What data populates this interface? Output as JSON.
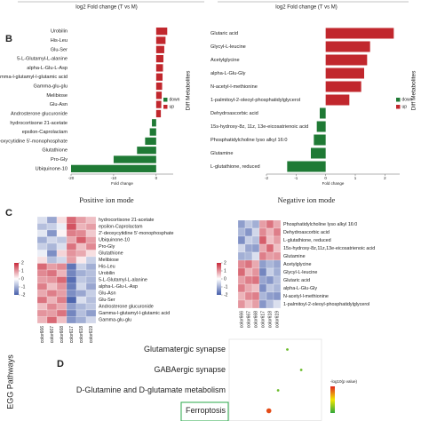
{
  "top_labels": [
    "log2 Fold change (T vs M)",
    "log2 Fold change (T vs M)"
  ],
  "panels": [
    "B",
    "C",
    "D"
  ],
  "chart_data": [
    {
      "type": "hbar",
      "caption": "Positive ion mode",
      "xlabel": "Fold change",
      "legend_title": "Diff Metabolites",
      "legend": [
        {
          "name": "down",
          "color": "#1f7a35"
        },
        {
          "name": "up",
          "color": "#c1272d"
        }
      ],
      "categories": [
        "Urobilin",
        "His-Leu",
        "Glu-Ser",
        "5-L-Glutamyl-L-alanine",
        "alpha-L-Glu-L-Asp",
        "Gamma-l-glutamyl-l-glutamic acid",
        "Gamma-glu-glu",
        "Melibiose",
        "Glu-Asn",
        "Androsterone glucuronide",
        "hydrocortisone 21-acetate",
        "epsilon-Caprolactam",
        "2'-deoxycytidine 5'-monophosphate",
        "Glutathione",
        "Pro-Gly",
        "Ubiquinone-10"
      ],
      "values": [
        2.6,
        2.2,
        1.9,
        1.7,
        1.6,
        1.5,
        1.4,
        1.3,
        1.2,
        1.1,
        -1.0,
        -1.5,
        -2.6,
        -4.5,
        -10,
        -20
      ],
      "xlim": [
        -20,
        4
      ],
      "xticks": [
        -20,
        -10,
        0
      ]
    },
    {
      "type": "hbar",
      "caption": "Negative ion mode",
      "xlabel": "Fold change",
      "legend_title": "Diff Metabolites",
      "legend": [
        {
          "name": "down",
          "color": "#1f7a35"
        },
        {
          "name": "up",
          "color": "#c1272d"
        }
      ],
      "categories": [
        "Glutaric acid",
        "Glycyl-L-leucine",
        "Acetylglycine",
        "alpha-L-Glu-Gly",
        "N-acetyl-l-methionine",
        "1-palmitoyl-2-oleoyl-phosphatidylglycerol",
        "Dehydroascorbic acid",
        "15s-hydroxy-8z, 11z, 13e-eicosatrienoic acid",
        "Phosphatidylcholine lyso alkyl 16:0",
        "Glutamine",
        "L-glutathione, reduced"
      ],
      "values": [
        2.3,
        1.5,
        1.4,
        1.3,
        1.2,
        0.8,
        -0.2,
        -0.3,
        -0.4,
        -0.5,
        -1.3
      ],
      "xlim": [
        -2,
        2.5
      ],
      "xticks": [
        -2,
        -1,
        0,
        1,
        2
      ]
    },
    {
      "type": "heatmap",
      "rows": [
        "hydrocortisone 21-acetate",
        "epsilon-Caprolactam",
        "2'-deoxycytidine 5'-monophosphate",
        "Ubiquinone-10",
        "Pro-Gly",
        "Glutathione",
        "Melibiose",
        "His-Leu",
        "Urobilin",
        "5-L-Glutamyl-L-alanine",
        "alpha-L-Glu-L-Asp",
        "Glu-Asn",
        "Glu-Ser",
        "Androsterone glucuronide",
        "Gamma-l-glutamyl-l-glutamic acid",
        "Gamma-glu-glu"
      ],
      "columns": [
        "color666",
        "color667",
        "color668",
        "color617",
        "color618",
        "color619"
      ],
      "values": [
        [
          -0.4,
          -1.1,
          0.3,
          1.4,
          0.9,
          0.6
        ],
        [
          -0.8,
          -0.6,
          -0.2,
          1.6,
          0.7,
          0.9
        ],
        [
          -0.3,
          -1.3,
          0.1,
          1.2,
          1.1,
          0.5
        ],
        [
          -1.0,
          -0.5,
          -0.7,
          0.8,
          1.5,
          0.9
        ],
        [
          -0.6,
          -0.9,
          -0.4,
          1.3,
          0.6,
          1.1
        ],
        [
          -0.2,
          -1.4,
          0.4,
          1.0,
          0.8,
          0.3
        ],
        [
          0.3,
          -0.8,
          -0.5,
          0.9,
          0.2,
          -0.6
        ],
        [
          1.4,
          0.9,
          1.1,
          -1.7,
          -0.6,
          -1.0
        ],
        [
          1.1,
          1.3,
          0.7,
          -1.5,
          -1.0,
          -0.8
        ],
        [
          0.9,
          1.0,
          1.4,
          -1.8,
          -0.7,
          -0.9
        ],
        [
          1.2,
          0.6,
          1.0,
          -1.6,
          -0.5,
          -1.1
        ],
        [
          0.8,
          1.2,
          0.9,
          -1.4,
          -1.1,
          -0.6
        ],
        [
          1.3,
          0.7,
          1.2,
          -1.9,
          -0.4,
          -0.8
        ],
        [
          0.6,
          1.1,
          0.8,
          -1.2,
          -0.9,
          -0.7
        ],
        [
          1.0,
          0.9,
          1.3,
          -1.5,
          -0.8,
          -1.2
        ],
        [
          0.7,
          1.4,
          0.6,
          -1.3,
          -1.0,
          -0.5
        ]
      ],
      "zlim": [
        -2,
        2
      ],
      "zticks": [
        2,
        1,
        0,
        -1,
        -2
      ]
    },
    {
      "type": "heatmap",
      "rows": [
        "Phosphatidylcholine lyso alkyl 16:0",
        "Dehydroascorbic acid",
        "L-glutathione, reduced",
        "15s-hydroxy-8z,11z,13e-eicosatrienoic acid",
        "Glutamine",
        "Acetylglycine",
        "Glycyl-L-leucine",
        "Glutaric acid",
        "alpha-L-Glu-Gly",
        "N-acetyl-l-methionine",
        "1-palmitoyl-2-oleoyl-phosphatidylglycerol"
      ],
      "columns": [
        "color666",
        "color667",
        "color668",
        "color617",
        "color618",
        "color619"
      ],
      "values": [
        [
          -1.2,
          -0.7,
          -1.0,
          0.9,
          1.3,
          0.8
        ],
        [
          -0.9,
          -1.3,
          -0.5,
          1.1,
          0.7,
          1.2
        ],
        [
          -1.4,
          -0.6,
          -0.8,
          1.5,
          0.6,
          0.9
        ],
        [
          -0.5,
          -1.1,
          -1.2,
          0.8,
          1.4,
          0.6
        ],
        [
          -1.0,
          -0.9,
          -0.4,
          1.2,
          0.9,
          1.0
        ],
        [
          1.1,
          1.3,
          0.8,
          -1.2,
          -0.9,
          -1.1
        ],
        [
          1.4,
          0.7,
          1.0,
          -1.5,
          -0.6,
          -1.0
        ],
        [
          0.9,
          1.2,
          1.3,
          -1.1,
          -1.3,
          -0.8
        ],
        [
          1.2,
          0.8,
          0.6,
          -1.4,
          -0.7,
          -0.9
        ],
        [
          0.7,
          1.1,
          1.2,
          -0.9,
          -1.2,
          -1.3
        ],
        [
          1.0,
          0.6,
          0.9,
          -1.3,
          -0.8,
          -0.4
        ]
      ],
      "zlim": [
        -2,
        2
      ],
      "zticks": [
        2,
        1,
        0,
        -1,
        -2
      ]
    },
    {
      "type": "bubble",
      "ylabel": "EGG Pathways",
      "colorbar_title": "-log10(p value)",
      "categories": [
        "Glutamatergic synapse",
        "GABAergic synapse",
        "D-Glutamine and D-glutamate metabolism",
        "Ferroptosis"
      ],
      "x": [
        0.63,
        0.78,
        0.53,
        0.43
      ],
      "sizes": [
        1,
        1,
        1,
        4
      ],
      "color_values": [
        1.3,
        1.3,
        1.3,
        2.8
      ],
      "clim": [
        1,
        3
      ],
      "xlim": [
        0,
        1
      ],
      "highlight": 3
    }
  ]
}
